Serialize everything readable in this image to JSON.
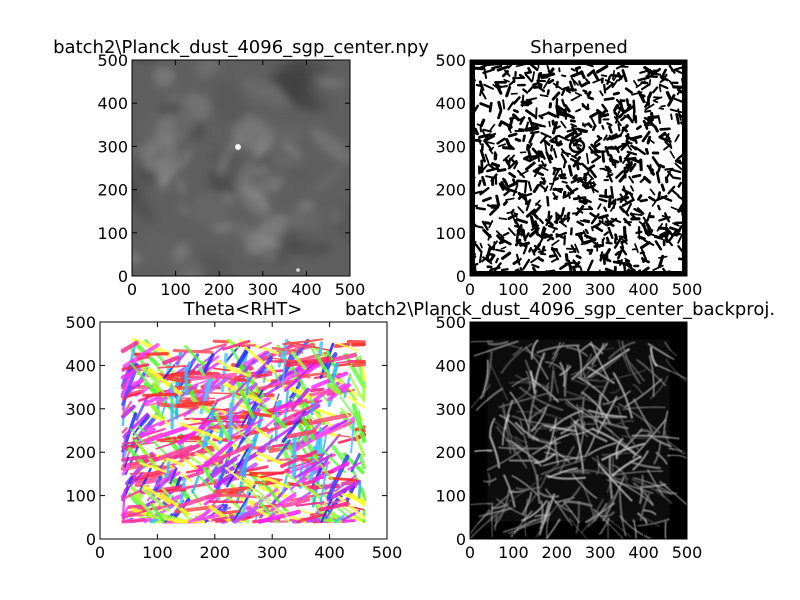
{
  "figure": {
    "background": "#ffffff"
  },
  "chart_data": [
    {
      "type": "heatmap",
      "id": "input-map",
      "title": "batch2\\Planck_dust_4096_sgp_center.npy",
      "colormap": "gray",
      "xlim": [
        0,
        500
      ],
      "ylim": [
        0,
        500
      ],
      "xticks": [
        "0",
        "100",
        "200",
        "300",
        "400",
        "500"
      ],
      "yticks": [
        "0",
        "100",
        "200",
        "300",
        "400",
        "500"
      ],
      "grid": false
    },
    {
      "type": "heatmap",
      "id": "sharpened-map",
      "title": "Sharpened",
      "colormap": "binary",
      "xlim": [
        0,
        500
      ],
      "ylim": [
        0,
        500
      ],
      "xticks": [
        "0",
        "100",
        "200",
        "300",
        "400",
        "500"
      ],
      "yticks": [
        "0",
        "100",
        "200",
        "300",
        "400",
        "500"
      ],
      "grid": false
    },
    {
      "type": "scatter",
      "id": "theta-rht",
      "title": "Theta<RHT>",
      "colormap": "hsv",
      "xlim": [
        0,
        500
      ],
      "ylim": [
        0,
        500
      ],
      "data_extent": [
        40,
        460
      ],
      "xticks": [
        "0",
        "100",
        "200",
        "300",
        "400",
        "500"
      ],
      "yticks": [
        "0",
        "100",
        "200",
        "300",
        "400",
        "500"
      ],
      "grid": false
    },
    {
      "type": "heatmap",
      "id": "backprojection",
      "title": "batch2\\Planck_dust_4096_sgp_center_backproj.",
      "colormap": "gray",
      "xlim": [
        0,
        500
      ],
      "ylim": [
        0,
        500
      ],
      "data_extent": [
        40,
        460
      ],
      "xticks": [
        "0",
        "100",
        "200",
        "300",
        "400",
        "500"
      ],
      "yticks": [
        "0",
        "100",
        "200",
        "300",
        "400",
        "500"
      ],
      "grid": false
    }
  ]
}
